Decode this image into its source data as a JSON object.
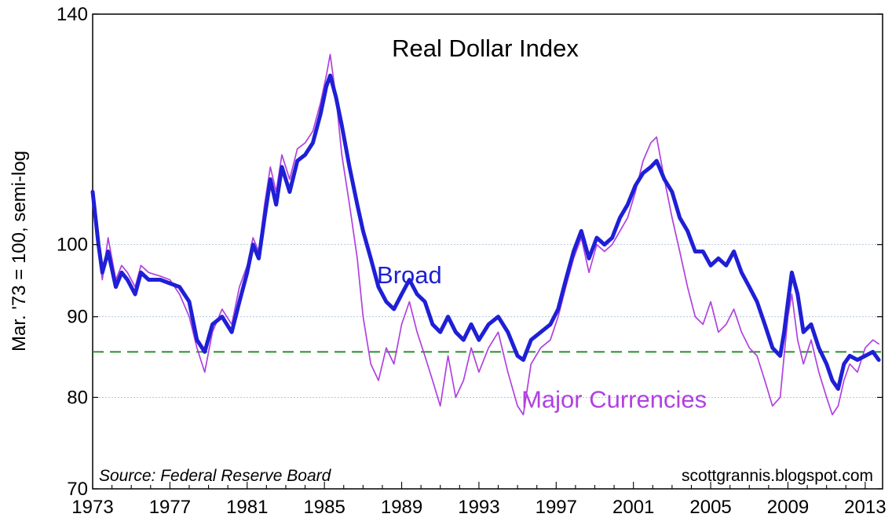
{
  "chart_data": {
    "type": "line",
    "title": "Real Dollar Index",
    "ylabel": "Mar. '73 = 100, semi-log",
    "y_scale": "log",
    "ylim": [
      70,
      140
    ],
    "xlim": [
      1973.0,
      2013.9
    ],
    "y_ticks": [
      70,
      80,
      90,
      100,
      140
    ],
    "y_tick_labels": [
      "70",
      "80",
      "90",
      "100",
      "140"
    ],
    "x_ticks": [
      1973,
      1977,
      1981,
      1985,
      1989,
      1993,
      1997,
      2001,
      2005,
      2009,
      2013
    ],
    "x_tick_labels": [
      "1973",
      "1977",
      "1981",
      "1985",
      "1989",
      "1993",
      "1997",
      "2001",
      "2005",
      "2009",
      "2013"
    ],
    "grid": "horizontal dotted",
    "reference_line": {
      "value": 85.5,
      "style": "dashed",
      "color": "#1a8a1a"
    },
    "source": "Source: Federal Reserve Board",
    "credit": "scottgrannis.blogspot.com",
    "colors": {
      "broad": "#1f1fd6",
      "major": "#b041e0",
      "grid": "#b5c7df",
      "reference": "#1a8a1a"
    },
    "series": [
      {
        "name": "Broad",
        "label_pos": [
          1989.4,
          94.5
        ],
        "x": [
          1973.0,
          1973.3,
          1973.5,
          1973.8,
          1974.2,
          1974.5,
          1974.8,
          1975.2,
          1975.5,
          1975.9,
          1976.5,
          1977.0,
          1977.5,
          1978.0,
          1978.4,
          1978.8,
          1979.2,
          1979.7,
          1980.2,
          1980.6,
          1981.0,
          1981.3,
          1981.6,
          1981.9,
          1982.2,
          1982.5,
          1982.8,
          1983.2,
          1983.6,
          1984.0,
          1984.4,
          1984.8,
          1985.1,
          1985.3,
          1985.6,
          1985.9,
          1986.3,
          1986.7,
          1987.0,
          1987.4,
          1987.8,
          1988.2,
          1988.6,
          1989.0,
          1989.4,
          1989.8,
          1990.2,
          1990.6,
          1991.0,
          1991.4,
          1991.8,
          1992.2,
          1992.6,
          1993.0,
          1993.5,
          1994.0,
          1994.5,
          1995.0,
          1995.3,
          1995.7,
          1996.2,
          1996.7,
          1997.1,
          1997.5,
          1997.9,
          1998.3,
          1998.7,
          1999.1,
          1999.5,
          1999.9,
          2000.3,
          2000.7,
          2001.1,
          2001.5,
          2001.9,
          2002.2,
          2002.6,
          2003.0,
          2003.4,
          2003.8,
          2004.2,
          2004.6,
          2005.0,
          2005.4,
          2005.8,
          2006.2,
          2006.6,
          2007.0,
          2007.4,
          2007.8,
          2008.2,
          2008.6,
          2008.8,
          2009.0,
          2009.2,
          2009.5,
          2009.8,
          2010.2,
          2010.6,
          2011.0,
          2011.3,
          2011.6,
          2011.9,
          2012.2,
          2012.6,
          2013.0,
          2013.4,
          2013.7
        ],
        "values": [
          108,
          100,
          96,
          99,
          94,
          96,
          95,
          93,
          96,
          95,
          95,
          94.5,
          94,
          92,
          87,
          85.5,
          89,
          90,
          88,
          92,
          96,
          100,
          98,
          104,
          110,
          106,
          112,
          108,
          113,
          114,
          116,
          121,
          126,
          128,
          124,
          119,
          112,
          106,
          102,
          98,
          94,
          92,
          91,
          93,
          95,
          93,
          92,
          89,
          88,
          90,
          88,
          87,
          89,
          87,
          89,
          90,
          88,
          85,
          84.5,
          87,
          88,
          89,
          91,
          95,
          99,
          102,
          98,
          101,
          100,
          101,
          104,
          106,
          109,
          111,
          112,
          113,
          110,
          108,
          104,
          102,
          99,
          99,
          97,
          98,
          97,
          99,
          96,
          94,
          92,
          89,
          86,
          85,
          88,
          92,
          96,
          93,
          88,
          89,
          86,
          84,
          82,
          81,
          84,
          85,
          84.5,
          85,
          85.5,
          84.5
        ]
      },
      {
        "name": "Major Currencies",
        "label_pos": [
          2000.0,
          78.8
        ],
        "x": [
          1973.0,
          1973.3,
          1973.5,
          1973.8,
          1974.2,
          1974.5,
          1974.8,
          1975.2,
          1975.5,
          1975.9,
          1976.5,
          1977.0,
          1977.5,
          1978.0,
          1978.4,
          1978.8,
          1979.2,
          1979.7,
          1980.2,
          1980.6,
          1981.0,
          1981.3,
          1981.6,
          1981.9,
          1982.2,
          1982.5,
          1982.8,
          1983.2,
          1983.6,
          1984.0,
          1984.4,
          1984.8,
          1985.1,
          1985.3,
          1985.6,
          1985.9,
          1986.3,
          1986.7,
          1987.0,
          1987.4,
          1987.8,
          1988.2,
          1988.6,
          1989.0,
          1989.4,
          1989.8,
          1990.2,
          1990.6,
          1991.0,
          1991.4,
          1991.8,
          1992.2,
          1992.6,
          1993.0,
          1993.5,
          1994.0,
          1994.5,
          1995.0,
          1995.3,
          1995.7,
          1996.2,
          1996.7,
          1997.1,
          1997.5,
          1997.9,
          1998.3,
          1998.7,
          1999.1,
          1999.5,
          1999.9,
          2000.3,
          2000.7,
          2001.1,
          2001.5,
          2001.9,
          2002.2,
          2002.6,
          2003.0,
          2003.4,
          2003.8,
          2004.2,
          2004.6,
          2005.0,
          2005.4,
          2005.8,
          2006.2,
          2006.6,
          2007.0,
          2007.4,
          2007.8,
          2008.2,
          2008.6,
          2008.8,
          2009.0,
          2009.2,
          2009.5,
          2009.8,
          2010.2,
          2010.6,
          2011.0,
          2011.3,
          2011.6,
          2011.9,
          2012.2,
          2012.6,
          2013.0,
          2013.4,
          2013.7
        ],
        "values": [
          108,
          99,
          95,
          101,
          95,
          97,
          96,
          94,
          97,
          96,
          95.5,
          95,
          93,
          90,
          86,
          83,
          88,
          91,
          89,
          94,
          97,
          101,
          99,
          106,
          112,
          108,
          114,
          110,
          115,
          116,
          118,
          123,
          128,
          132,
          124,
          114,
          106,
          98,
          90,
          84,
          82,
          86,
          84,
          89,
          92,
          88,
          85,
          82,
          79,
          85,
          80,
          82,
          86,
          83,
          86,
          88,
          83,
          79,
          78,
          84,
          86,
          87,
          90,
          94,
          98,
          101,
          96,
          100,
          99,
          100,
          102,
          104,
          108,
          113,
          116,
          117,
          110,
          104,
          99,
          94,
          90,
          89,
          92,
          88,
          89,
          91,
          88,
          86,
          85,
          82,
          79,
          80,
          85,
          90,
          93,
          87,
          84,
          87,
          83,
          80,
          78,
          79,
          82,
          84,
          83,
          86,
          87,
          86.5
        ]
      }
    ]
  }
}
